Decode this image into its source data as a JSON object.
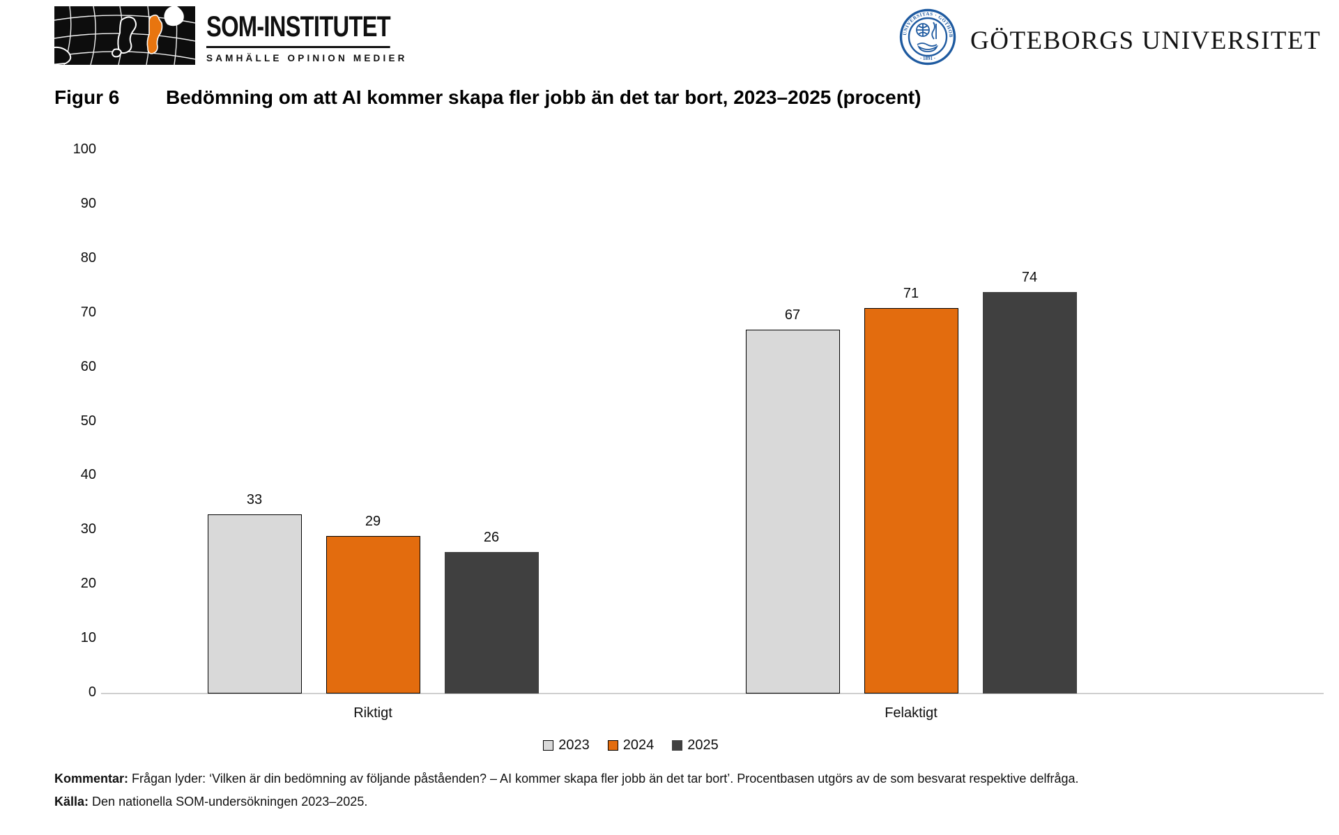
{
  "header": {
    "som_logo": {
      "title": "SOM-INSTITUTET",
      "subtitle": "SAMHÄLLE  OPINION  MEDIER",
      "map_orange": "#e8750f"
    },
    "gu_logo": {
      "name": "GÖTEBORGS UNIVERSITET",
      "seal_text": "UNIVERSITAS · GOTHOBURGENSIS",
      "seal_year": "· 1891 ·",
      "seal_blue": "#1e5aa0"
    }
  },
  "chart_data": {
    "type": "bar",
    "figure_label": "Figur 6",
    "title": "Bedömning om att AI kommer skapa fler jobb än det tar bort, 2023–2025 (procent)",
    "categories": [
      "Riktigt",
      "Felaktigt"
    ],
    "series": [
      {
        "name": "2023",
        "color": "#d9d9d9",
        "border": "#000000",
        "values": [
          33,
          67
        ]
      },
      {
        "name": "2024",
        "color": "#e36c0e",
        "border": "#000000",
        "values": [
          29,
          71
        ]
      },
      {
        "name": "2025",
        "color": "#404040",
        "border": "#404040",
        "values": [
          26,
          74
        ]
      }
    ],
    "ylim": [
      0,
      100
    ],
    "yticks": [
      0,
      10,
      20,
      30,
      40,
      50,
      60,
      70,
      80,
      90,
      100
    ],
    "xlabel": "",
    "ylabel": "",
    "grid": false,
    "legend_position": "bottom"
  },
  "footer": {
    "kommentar_label": "Kommentar:",
    "kommentar_text": "Frågan lyder: ‘Vilken är din bedömning av följande påståenden?  – AI kommer skapa fler jobb än det tar bort’. Procentbasen utgörs av de som besvarat respektive delfråga.",
    "kalla_label": "Källa:",
    "kalla_text": "Den nationella SOM-undersökningen 2023–2025."
  }
}
